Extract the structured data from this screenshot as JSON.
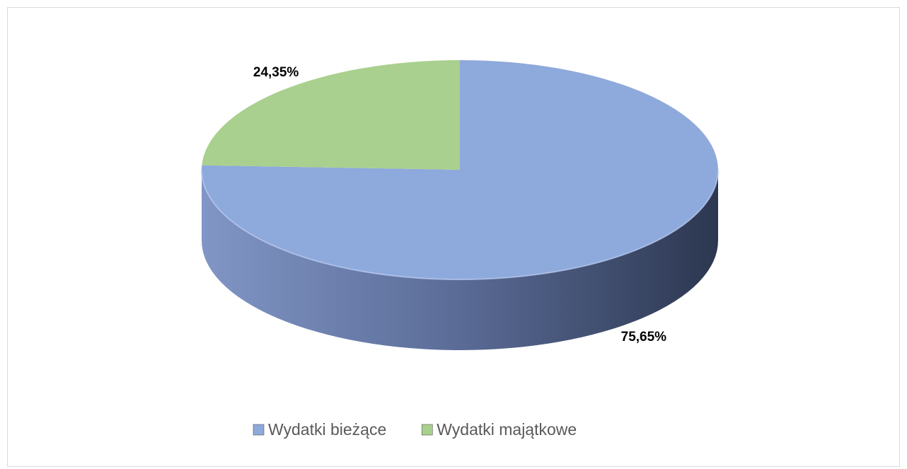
{
  "chart_data": {
    "type": "pie",
    "categories": [
      "Wydatki bieżące",
      "Wydatki majątkowe"
    ],
    "values": [
      75.65,
      24.35
    ],
    "value_labels": [
      "75,65%",
      "24,35%"
    ],
    "colors": [
      "#8ea9db",
      "#a9d08e"
    ],
    "legend": "bottom"
  }
}
